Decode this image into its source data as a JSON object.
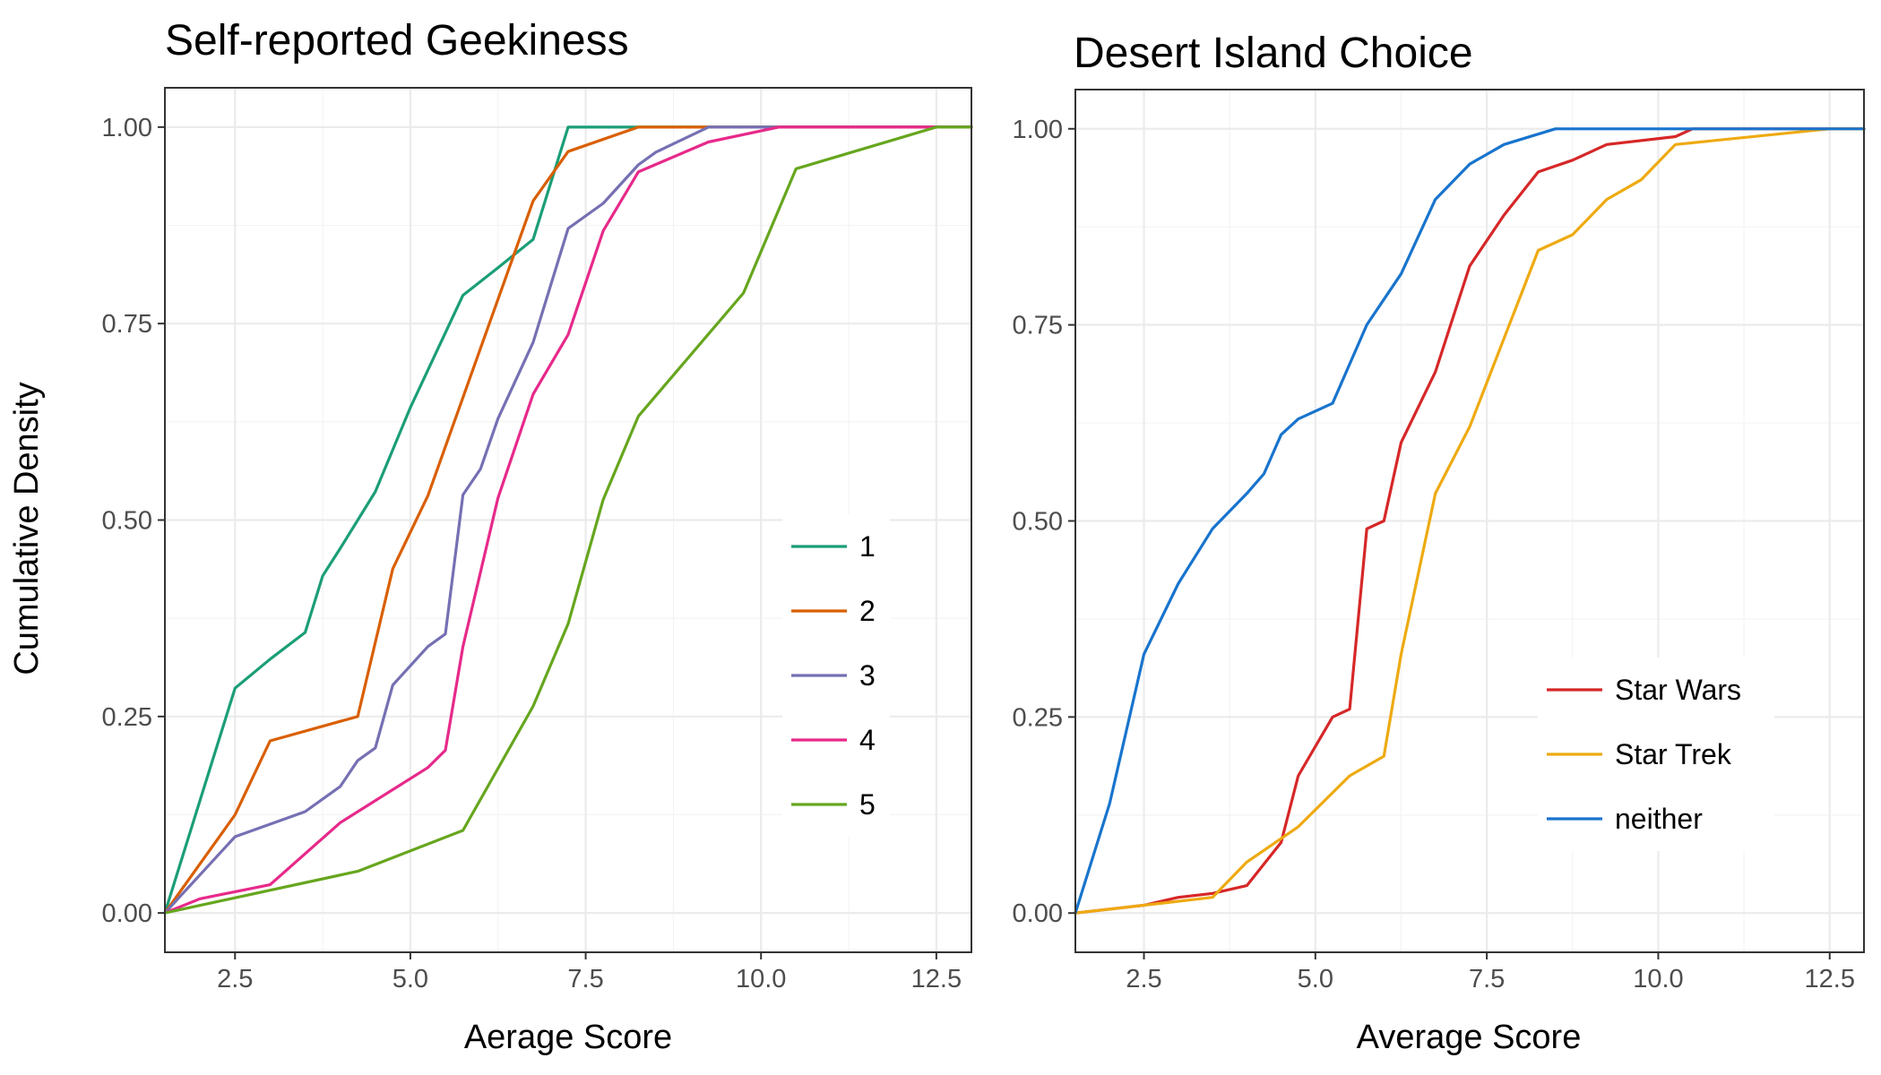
{
  "shared": {
    "ylabel": "Cumulative Density"
  },
  "chart_data": [
    {
      "type": "line",
      "title": "Self-reported Geekiness",
      "xlabel": "Aerage Score",
      "xlim": [
        1.5,
        13.0
      ],
      "ylim": [
        -0.05,
        1.05
      ],
      "xticks": [
        "2.5",
        "5.0",
        "7.5",
        "10.0",
        "12.5"
      ],
      "yticks": [
        "0.00",
        "0.25",
        "0.50",
        "0.75",
        "1.00"
      ],
      "legend_position": "right-center",
      "grid": true,
      "series": [
        {
          "name": "1",
          "color": "#1b9e77",
          "x": [
            1.5,
            2.5,
            3.0,
            3.5,
            3.75,
            4.0,
            4.5,
            5.0,
            5.75,
            6.25,
            6.75,
            7.25,
            8.0,
            12.5,
            13.0
          ],
          "y": [
            0.0,
            0.286,
            0.323,
            0.357,
            0.429,
            0.464,
            0.536,
            0.643,
            0.786,
            0.821,
            0.857,
            1.0,
            1.0,
            1.0,
            1.0
          ]
        },
        {
          "name": "2",
          "color": "#d95f02",
          "x": [
            1.5,
            2.5,
            3.0,
            4.25,
            4.75,
            5.25,
            6.75,
            7.25,
            8.25,
            12.5,
            13.0
          ],
          "y": [
            0.0,
            0.125,
            0.219,
            0.25,
            0.438,
            0.531,
            0.906,
            0.969,
            1.0,
            1.0,
            1.0
          ]
        },
        {
          "name": "3",
          "color": "#7570b3",
          "x": [
            1.5,
            2.5,
            3.5,
            4.0,
            4.25,
            4.5,
            4.75,
            5.25,
            5.5,
            5.75,
            6.0,
            6.25,
            6.75,
            7.25,
            7.75,
            8.25,
            8.5,
            9.25,
            10.0,
            12.5,
            13.0
          ],
          "y": [
            0.0,
            0.097,
            0.129,
            0.161,
            0.194,
            0.21,
            0.29,
            0.339,
            0.355,
            0.532,
            0.565,
            0.629,
            0.726,
            0.871,
            0.903,
            0.952,
            0.968,
            1.0,
            1.0,
            1.0,
            1.0
          ]
        },
        {
          "name": "4",
          "color": "#e7298a",
          "x": [
            1.5,
            2.0,
            3.0,
            4.0,
            5.25,
            5.5,
            5.75,
            6.25,
            6.75,
            7.25,
            7.75,
            8.25,
            9.25,
            10.25,
            12.5,
            13.0
          ],
          "y": [
            0.0,
            0.018,
            0.036,
            0.115,
            0.185,
            0.207,
            0.339,
            0.528,
            0.66,
            0.736,
            0.868,
            0.943,
            0.981,
            1.0,
            1.0,
            1.0
          ]
        },
        {
          "name": "5",
          "color": "#66a61e",
          "x": [
            1.5,
            4.25,
            5.75,
            6.75,
            7.25,
            7.75,
            8.25,
            9.75,
            10.5,
            12.5,
            13.0
          ],
          "y": [
            0.0,
            0.053,
            0.105,
            0.263,
            0.368,
            0.526,
            0.632,
            0.789,
            0.947,
            1.0,
            1.0
          ]
        }
      ]
    },
    {
      "type": "line",
      "title": "Desert Island Choice",
      "xlabel": "Average Score",
      "xlim": [
        1.5,
        13.0
      ],
      "ylim": [
        -0.05,
        1.05
      ],
      "xticks": [
        "2.5",
        "5.0",
        "7.5",
        "10.0",
        "12.5"
      ],
      "yticks": [
        "0.00",
        "0.25",
        "0.50",
        "0.75",
        "1.00"
      ],
      "legend_position": "bottom-right",
      "grid": true,
      "series": [
        {
          "name": "Star Wars",
          "color": "#d62728",
          "x": [
            1.5,
            2.5,
            3.0,
            3.5,
            4.0,
            4.5,
            4.75,
            5.25,
            5.5,
            5.75,
            6.0,
            6.25,
            6.75,
            7.25,
            7.75,
            8.25,
            8.75,
            9.25,
            10.25,
            10.5,
            12.5,
            13.0
          ],
          "y": [
            0.0,
            0.01,
            0.02,
            0.025,
            0.035,
            0.09,
            0.175,
            0.25,
            0.26,
            0.49,
            0.5,
            0.6,
            0.69,
            0.825,
            0.89,
            0.945,
            0.96,
            0.98,
            0.99,
            1.0,
            1.0,
            1.0
          ]
        },
        {
          "name": "Star Trek",
          "color": "#eeaa11",
          "x": [
            1.5,
            2.5,
            3.5,
            4.0,
            4.75,
            5.5,
            6.0,
            6.25,
            6.75,
            7.25,
            8.25,
            8.75,
            9.25,
            9.75,
            10.25,
            12.5,
            13.0
          ],
          "y": [
            0.0,
            0.01,
            0.02,
            0.065,
            0.11,
            0.175,
            0.2,
            0.33,
            0.535,
            0.62,
            0.845,
            0.865,
            0.91,
            0.935,
            0.98,
            1.0,
            1.0
          ]
        },
        {
          "name": "neither",
          "color": "#1874cd",
          "x": [
            1.5,
            2.0,
            2.5,
            3.0,
            3.5,
            4.0,
            4.25,
            4.5,
            4.75,
            5.25,
            5.5,
            5.75,
            6.25,
            6.75,
            7.25,
            7.75,
            8.5,
            12.5,
            13.0
          ],
          "y": [
            0.0,
            0.14,
            0.33,
            0.42,
            0.49,
            0.535,
            0.56,
            0.61,
            0.63,
            0.65,
            0.7,
            0.75,
            0.815,
            0.91,
            0.955,
            0.98,
            1.0,
            1.0,
            1.0
          ]
        }
      ]
    }
  ]
}
